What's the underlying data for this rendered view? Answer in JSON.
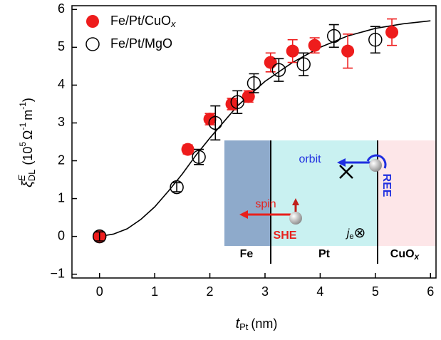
{
  "chart_data": {
    "type": "scatter",
    "x_label": {
      "symbol": "t",
      "sub": "Pt",
      "unit": "(nm)"
    },
    "y_label": {
      "symbol": "ξ",
      "sup": "E",
      "sub": "DL",
      "unit_open": "(10",
      "unit_exp": "5",
      "unit_ohm": "Ω",
      "ohm_exp": "-1",
      "unit_m": "m",
      "m_exp": "-1",
      "unit_close": ")"
    },
    "xlim": [
      -0.5,
      6.1
    ],
    "ylim": [
      -1.1,
      6.1
    ],
    "xticks": [
      0,
      1,
      2,
      3,
      4,
      5,
      6
    ],
    "yticks": [
      {
        "value": -1,
        "label": "−1"
      },
      0,
      1,
      2,
      3,
      4,
      5,
      6
    ],
    "series": [
      {
        "name": "Fe/Pt/CuO",
        "name_subscript": "x",
        "color": "#ee1c1c",
        "filled": true,
        "x": [
          0,
          1.6,
          2.0,
          2.4,
          2.7,
          3.1,
          3.5,
          3.9,
          4.5,
          5.3
        ],
        "values": [
          0,
          2.3,
          3.1,
          3.5,
          3.7,
          4.6,
          4.9,
          5.05,
          4.9,
          5.4
        ],
        "errors": [
          0.1,
          0.12,
          0.15,
          0.15,
          0.15,
          0.25,
          0.3,
          0.2,
          0.45,
          0.35
        ]
      },
      {
        "name": "Fe/Pt/MgO",
        "color": "#000000",
        "filled": false,
        "x": [
          0,
          1.4,
          1.8,
          2.1,
          2.5,
          2.8,
          3.25,
          3.7,
          4.25,
          5.0
        ],
        "values": [
          0,
          1.3,
          2.1,
          3.0,
          3.55,
          4.05,
          4.4,
          4.55,
          5.3,
          5.2
        ],
        "errors": [
          0.12,
          0.12,
          0.2,
          0.45,
          0.3,
          0.25,
          0.3,
          0.3,
          0.3,
          0.35
        ]
      }
    ],
    "fit": {
      "color": "#000000",
      "x": [
        0,
        0.25,
        0.5,
        0.75,
        1,
        1.25,
        1.5,
        1.75,
        2,
        2.5,
        3,
        3.5,
        4,
        4.5,
        5,
        5.5,
        6
      ],
      "values": [
        0,
        0.06,
        0.2,
        0.45,
        0.78,
        1.2,
        1.65,
        2.15,
        2.6,
        3.45,
        4.1,
        4.6,
        5.0,
        5.3,
        5.5,
        5.62,
        5.7
      ]
    }
  },
  "inset": {
    "layers": [
      "Fe",
      "Pt",
      "CuO"
    ],
    "layer_subscript": "x",
    "spin": "spin",
    "she": "SHE",
    "orbit": "orbit",
    "ree": "REE",
    "current": "j",
    "current_sub": "e",
    "current_symbol": "⊗"
  }
}
